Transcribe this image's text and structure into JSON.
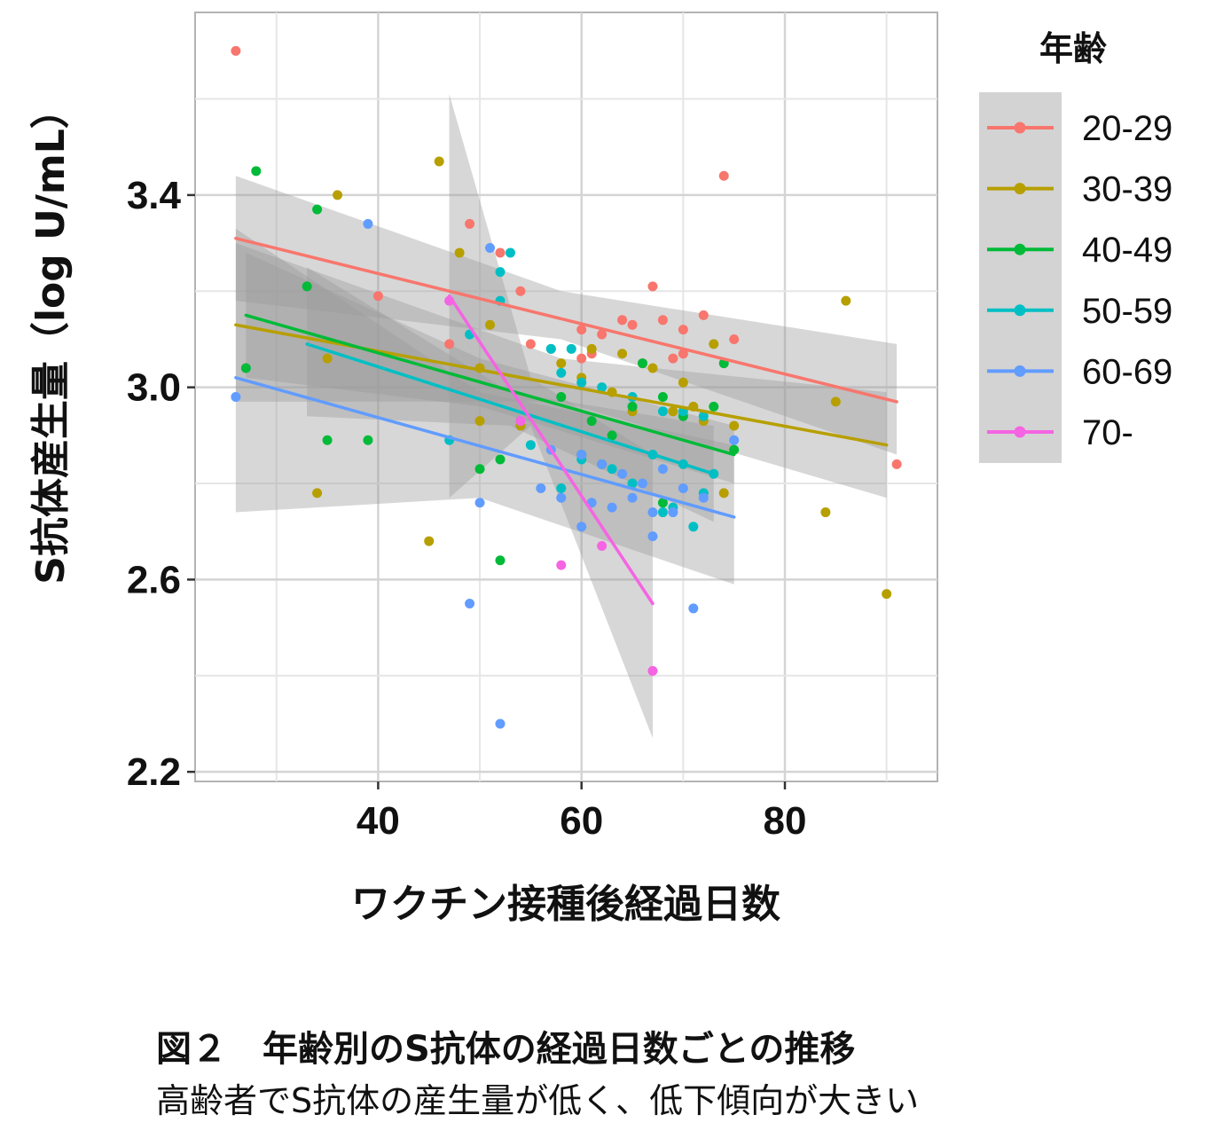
{
  "chart_data": {
    "type": "scatter",
    "xlabel": "ワクチン接種後経過日数",
    "ylabel": "S抗体産生量（log U/mL）",
    "xlim": [
      22,
      95
    ],
    "ylim": [
      2.18,
      3.78
    ],
    "xticks": [
      40,
      60,
      80
    ],
    "xtick_labels": [
      "40",
      "60",
      "80"
    ],
    "yticks": [
      2.2,
      2.6,
      3.0,
      3.4
    ],
    "ytick_labels": [
      "2.2",
      "2.6",
      "3.0",
      "3.4"
    ],
    "grid": true,
    "legend": {
      "title": "年齢",
      "placement": "right"
    },
    "series": [
      {
        "name": "20-29",
        "color": "#F8766D",
        "trend": {
          "x": [
            26,
            91
          ],
          "y": [
            3.31,
            2.97
          ]
        },
        "band": {
          "x": [
            26,
            91
          ],
          "upper": [
            3.44,
            3.09
          ],
          "lower": [
            3.18,
            2.86
          ],
          "mid_x": 58,
          "mid_upper": 3.2,
          "mid_lower": 3.1
        },
        "points": [
          [
            26,
            3.7
          ],
          [
            74,
            3.44
          ],
          [
            49,
            3.34
          ],
          [
            52,
            3.28
          ],
          [
            54,
            3.2
          ],
          [
            40,
            3.19
          ],
          [
            67,
            3.21
          ],
          [
            72,
            3.15
          ],
          [
            64,
            3.14
          ],
          [
            68,
            3.14
          ],
          [
            60,
            3.12
          ],
          [
            62,
            3.11
          ],
          [
            65,
            3.13
          ],
          [
            70,
            3.12
          ],
          [
            75,
            3.1
          ],
          [
            55,
            3.09
          ],
          [
            47,
            3.09
          ],
          [
            57,
            3.08
          ],
          [
            61,
            3.07
          ],
          [
            69,
            3.06
          ],
          [
            70,
            3.07
          ],
          [
            60,
            3.06
          ],
          [
            66,
            3.05
          ],
          [
            91,
            2.84
          ]
        ]
      },
      {
        "name": "30-39",
        "color": "#B79F00",
        "trend": {
          "x": [
            26,
            90
          ],
          "y": [
            3.13,
            2.88
          ]
        },
        "band": {
          "x": [
            26,
            90
          ],
          "upper": [
            3.3,
            2.99
          ],
          "lower": [
            2.97,
            2.77
          ],
          "mid_x": 58,
          "mid_upper": 3.06,
          "mid_lower": 2.97
        },
        "points": [
          [
            46,
            3.47
          ],
          [
            36,
            3.4
          ],
          [
            48,
            3.28
          ],
          [
            86,
            3.18
          ],
          [
            51,
            3.13
          ],
          [
            35,
            3.06
          ],
          [
            50,
            3.04
          ],
          [
            58,
            3.05
          ],
          [
            61,
            3.08
          ],
          [
            64,
            3.07
          ],
          [
            67,
            3.04
          ],
          [
            71,
            2.96
          ],
          [
            73,
            3.09
          ],
          [
            60,
            3.02
          ],
          [
            63,
            2.99
          ],
          [
            65,
            2.95
          ],
          [
            69,
            2.95
          ],
          [
            72,
            2.93
          ],
          [
            75,
            2.92
          ],
          [
            85,
            2.97
          ],
          [
            54,
            2.92
          ],
          [
            50,
            2.93
          ],
          [
            34,
            2.78
          ],
          [
            74,
            2.78
          ],
          [
            84,
            2.74
          ],
          [
            45,
            2.68
          ],
          [
            90,
            2.57
          ],
          [
            70,
            3.01
          ]
        ]
      },
      {
        "name": "40-49",
        "color": "#00BA38",
        "trend": {
          "x": [
            27,
            75
          ],
          "y": [
            3.15,
            2.86
          ]
        },
        "band": {
          "x": [
            27,
            75
          ],
          "upper": [
            3.28,
            2.92
          ],
          "lower": [
            3.02,
            2.8
          ],
          "mid_x": 50,
          "mid_upper": 3.06,
          "mid_lower": 2.96
        },
        "points": [
          [
            28,
            3.45
          ],
          [
            34,
            3.37
          ],
          [
            33,
            3.21
          ],
          [
            27,
            3.04
          ],
          [
            35,
            2.89
          ],
          [
            39,
            2.89
          ],
          [
            58,
            2.98
          ],
          [
            61,
            2.93
          ],
          [
            65,
            2.96
          ],
          [
            68,
            2.98
          ],
          [
            70,
            2.94
          ],
          [
            73,
            2.96
          ],
          [
            75,
            2.87
          ],
          [
            74,
            3.05
          ],
          [
            60,
            2.86
          ],
          [
            63,
            2.9
          ],
          [
            66,
            3.05
          ],
          [
            52,
            2.85
          ],
          [
            50,
            2.83
          ],
          [
            62,
            2.84
          ],
          [
            68,
            2.76
          ],
          [
            52,
            2.64
          ]
        ]
      },
      {
        "name": "50-59",
        "color": "#00BFC4",
        "trend": {
          "x": [
            33,
            73
          ],
          "y": [
            3.09,
            2.82
          ]
        },
        "band": {
          "x": [
            33,
            73
          ],
          "upper": [
            3.25,
            2.92
          ],
          "lower": [
            2.94,
            2.72
          ],
          "mid_x": 53,
          "mid_upper": 2.99,
          "mid_lower": 2.92
        },
        "points": [
          [
            53,
            3.28
          ],
          [
            52,
            3.24
          ],
          [
            52,
            3.18
          ],
          [
            57,
            3.08
          ],
          [
            59,
            3.08
          ],
          [
            58,
            3.03
          ],
          [
            49,
            3.11
          ],
          [
            60,
            3.01
          ],
          [
            62,
            3.0
          ],
          [
            65,
            2.98
          ],
          [
            68,
            2.95
          ],
          [
            70,
            2.95
          ],
          [
            72,
            2.94
          ],
          [
            47,
            2.89
          ],
          [
            55,
            2.88
          ],
          [
            60,
            2.85
          ],
          [
            63,
            2.83
          ],
          [
            67,
            2.86
          ],
          [
            70,
            2.84
          ],
          [
            73,
            2.82
          ],
          [
            58,
            2.79
          ],
          [
            65,
            2.8
          ],
          [
            69,
            2.75
          ],
          [
            72,
            2.78
          ],
          [
            68,
            2.74
          ],
          [
            71,
            2.71
          ]
        ]
      },
      {
        "name": "60-69",
        "color": "#619CFF",
        "trend": {
          "x": [
            26,
            75
          ],
          "y": [
            3.02,
            2.73
          ]
        },
        "band": {
          "x": [
            26,
            75
          ],
          "upper": [
            3.33,
            2.88
          ],
          "lower": [
            2.74,
            2.59
          ],
          "mid_x": 50,
          "mid_upper": 2.99,
          "mid_lower": 2.77
        },
        "points": [
          [
            39,
            3.34
          ],
          [
            51,
            3.29
          ],
          [
            26,
            2.98
          ],
          [
            54,
            2.93
          ],
          [
            57,
            2.87
          ],
          [
            60,
            2.86
          ],
          [
            62,
            2.84
          ],
          [
            64,
            2.82
          ],
          [
            66,
            2.8
          ],
          [
            68,
            2.83
          ],
          [
            70,
            2.79
          ],
          [
            72,
            2.77
          ],
          [
            75,
            2.89
          ],
          [
            56,
            2.79
          ],
          [
            58,
            2.77
          ],
          [
            61,
            2.76
          ],
          [
            63,
            2.75
          ],
          [
            65,
            2.77
          ],
          [
            67,
            2.74
          ],
          [
            69,
            2.74
          ],
          [
            50,
            2.76
          ],
          [
            60,
            2.71
          ],
          [
            67,
            2.69
          ],
          [
            49,
            2.55
          ],
          [
            71,
            2.54
          ],
          [
            52,
            2.3
          ]
        ]
      },
      {
        "name": "70-",
        "color": "#F564E3",
        "trend": {
          "x": [
            47,
            67
          ],
          "y": [
            3.19,
            2.55
          ]
        },
        "band": {
          "x": [
            47,
            67
          ],
          "upper": [
            3.61,
            2.86
          ],
          "lower": [
            2.77,
            2.27
          ],
          "mid_x": 55,
          "mid_upper": 3.02,
          "mid_lower": 2.92
        },
        "points": [
          [
            47,
            3.18
          ],
          [
            54,
            2.93
          ],
          [
            62,
            2.67
          ],
          [
            58,
            2.63
          ],
          [
            67,
            2.41
          ]
        ]
      }
    ]
  },
  "caption": {
    "title": "図２　年齢別のS抗体の経過日数ごとの推移",
    "subtitle": "高齢者でS抗体の産生量が低く、低下傾向が大きい"
  }
}
